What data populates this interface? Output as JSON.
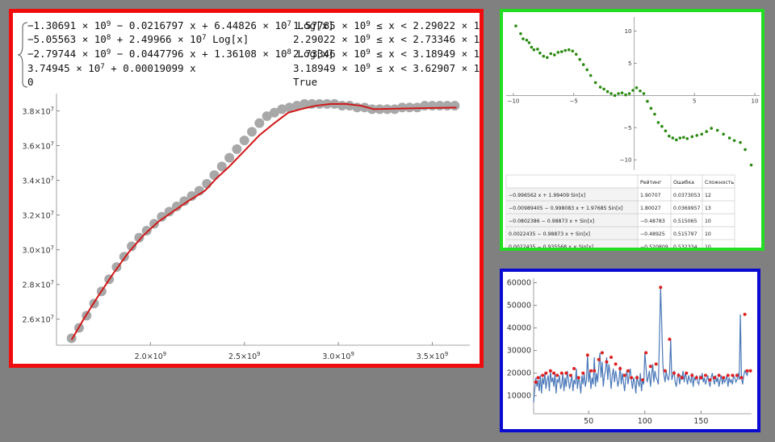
{
  "piecewise": {
    "rows": [
      {
        "expr": [
          "−1.30691 × 10",
          "9",
          " − 0.0216797 x + 6.44826 × 10",
          "7",
          " Log[x]"
        ],
        "cond": [
          "1.57785 × 10",
          "9",
          " ≤ x < 2.29022 × 10",
          "9"
        ]
      },
      {
        "expr": [
          "−5.05563 × 10",
          "8",
          " + 2.49966 × 10",
          "7",
          " Log[x]"
        ],
        "cond": [
          "2.29022 × 10",
          "9",
          " ≤ x < 2.73346 × 10",
          "9"
        ]
      },
      {
        "expr": [
          "−2.79744 × 10",
          "9",
          " − 0.0447796 x + 1.36108 × 10",
          "8",
          " Log[x]"
        ],
        "cond": [
          "2.73346 × 10",
          "9",
          " ≤ x < 3.18949 × 10",
          "9"
        ]
      },
      {
        "expr": [
          "3.74945 × 10",
          "7",
          " + 0.00019099 x"
        ],
        "cond": [
          "3.18949 × 10",
          "9",
          " ≤ x < 3.62907 × 10",
          "9"
        ]
      },
      {
        "expr": [
          "0"
        ],
        "cond": [
          "True"
        ]
      }
    ]
  },
  "table": {
    "headers": [
      "",
      "Рейтинг",
      "Ошибка",
      "Сложность"
    ],
    "rows": [
      [
        "−0.996562 x + 1.99409 Sin[x]",
        "1.90707",
        "0.0373053",
        "12"
      ],
      [
        "−0.00989405 − 0.998083 x + 1.97685 Sin[x]",
        "1.80027",
        "0.0369957",
        "13"
      ],
      [
        "−0.0802386 − 0.98873 x + Sin[x]",
        "−0.48783",
        "0.515065",
        "10"
      ],
      [
        "0.0022435 − 0.98873 x + Sin[x]",
        "−0.48925",
        "0.515797",
        "10"
      ],
      [
        "0.0022435 − 0.935568 x × Sin[x]",
        "−0.520809",
        "0.532334",
        "10"
      ]
    ]
  },
  "chart_data": [
    {
      "type": "scatter",
      "x_range": [
        1500000000.0,
        3700000000.0
      ],
      "y_range": [
        24500000.0,
        39000000.0
      ],
      "x_ticks": [
        2000000000.0,
        2500000000.0,
        3000000000.0,
        3500000000.0
      ],
      "x_tick_labels": [
        [
          "2.0×10",
          "9"
        ],
        [
          "2.5×10",
          "9"
        ],
        [
          "3.0×10",
          "9"
        ],
        [
          "3.5×10",
          "9"
        ]
      ],
      "y_ticks": [
        26000000.0,
        28000000.0,
        30000000.0,
        32000000.0,
        34000000.0,
        36000000.0,
        38000000.0
      ],
      "y_tick_labels": [
        [
          "2.6×10",
          "7"
        ],
        [
          "2.8×10",
          "7"
        ],
        [
          "3.0×10",
          "7"
        ],
        [
          "3.2×10",
          "7"
        ],
        [
          "3.4×10",
          "7"
        ],
        [
          "3.6×10",
          "7"
        ],
        [
          "3.8×10",
          "7"
        ]
      ],
      "series": [
        {
          "kind": "points",
          "color": "#a8a8a8",
          "x": [
            1580000000.0,
            1620000000.0,
            1660000000.0,
            1700000000.0,
            1740000000.0,
            1780000000.0,
            1820000000.0,
            1860000000.0,
            1900000000.0,
            1940000000.0,
            1980000000.0,
            2020000000.0,
            2060000000.0,
            2100000000.0,
            2140000000.0,
            2180000000.0,
            2220000000.0,
            2260000000.0,
            2300000000.0,
            2340000000.0,
            2380000000.0,
            2420000000.0,
            2460000000.0,
            2500000000.0,
            2540000000.0,
            2580000000.0,
            2620000000.0,
            2660000000.0,
            2700000000.0,
            2740000000.0,
            2780000000.0,
            2820000000.0,
            2860000000.0,
            2900000000.0,
            2940000000.0,
            2980000000.0,
            3020000000.0,
            3060000000.0,
            3100000000.0,
            3140000000.0,
            3180000000.0,
            3220000000.0,
            3260000000.0,
            3300000000.0,
            3340000000.0,
            3380000000.0,
            3420000000.0,
            3460000000.0,
            3500000000.0,
            3540000000.0,
            3580000000.0,
            3620000000.0
          ],
          "y": [
            24900000.0,
            25500000.0,
            26200000.0,
            26900000.0,
            27600000.0,
            28300000.0,
            29000000.0,
            29600000.0,
            30200000.0,
            30700000.0,
            31100000.0,
            31500000.0,
            31900000.0,
            32200000.0,
            32500000.0,
            32800000.0,
            33100000.0,
            33400000.0,
            33800000.0,
            34300000.0,
            34800000.0,
            35300000.0,
            35800000.0,
            36300000.0,
            36800000.0,
            37300000.0,
            37700000.0,
            37900000.0,
            38100000.0,
            38200000.0,
            38300000.0,
            38400000.0,
            38400000.0,
            38400000.0,
            38400000.0,
            38400000.0,
            38300000.0,
            38300000.0,
            38200000.0,
            38200000.0,
            38100000.0,
            38100000.0,
            38100000.0,
            38100000.0,
            38200000.0,
            38200000.0,
            38200000.0,
            38300000.0,
            38300000.0,
            38300000.0,
            38300000.0,
            38300000.0
          ]
        },
        {
          "kind": "line",
          "color": "#d01818",
          "x": [
            1580000000.0,
            1650000000.0,
            1720000000.0,
            1800000000.0,
            1880000000.0,
            1960000000.0,
            2040000000.0,
            2120000000.0,
            2200000000.0,
            2290000000.0,
            2350000000.0,
            2420000000.0,
            2500000000.0,
            2580000000.0,
            2660000000.0,
            2733400000.0,
            2800000000.0,
            2880000000.0,
            2960000000.0,
            3040000000.0,
            3120000000.0,
            3189500000.0,
            3300000000.0,
            3400000000.0,
            3500000000.0,
            3629000000.0
          ],
          "y": [
            24800000.0,
            26100000.0,
            27300000.0,
            28600000.0,
            29800000.0,
            30800000.0,
            31600000.0,
            32200000.0,
            32800000.0,
            33400000.0,
            34100000.0,
            34800000.0,
            35700000.0,
            36600000.0,
            37300000.0,
            37900000.0,
            38100000.0,
            38300000.0,
            38400000.0,
            38400000.0,
            38300000.0,
            38100000.0,
            38130000.0,
            38150000.0,
            38170000.0,
            38190000.0
          ]
        }
      ]
    },
    {
      "type": "scatter",
      "x_range": [
        -10.6,
        10.4
      ],
      "y_range": [
        -11.6,
        12.2
      ],
      "x_ticks": [
        -10,
        -5,
        5,
        10
      ],
      "x_tick_labels": [
        "−10",
        "−5",
        "5",
        "10"
      ],
      "y_ticks": [
        10,
        5,
        -5,
        -10
      ],
      "y_tick_labels": [
        "10",
        "5",
        "−5",
        "−10"
      ],
      "series": [
        {
          "kind": "points",
          "color": "#2a8a10",
          "x": [
            -9.8,
            -9.4,
            -9.2,
            -8.9,
            -8.7,
            -8.5,
            -8.3,
            -8.0,
            -7.8,
            -7.5,
            -7.2,
            -6.9,
            -6.6,
            -6.3,
            -6.0,
            -5.7,
            -5.4,
            -5.1,
            -4.8,
            -4.5,
            -4.2,
            -3.9,
            -3.6,
            -3.2,
            -2.8,
            -2.5,
            -2.2,
            -1.9,
            -1.6,
            -1.3,
            -1.0,
            -0.7,
            -0.4,
            -0.1,
            0.2,
            0.5,
            0.8,
            1.1,
            1.4,
            1.7,
            2.0,
            2.3,
            2.6,
            2.9,
            3.2,
            3.5,
            3.8,
            4.1,
            4.4,
            4.8,
            5.2,
            5.6,
            6.0,
            6.4,
            6.9,
            7.4,
            7.9,
            8.3,
            8.8,
            9.2,
            9.7
          ],
          "y": [
            10.8,
            9.6,
            8.8,
            8.6,
            8.2,
            7.5,
            7.1,
            7.2,
            6.6,
            6.1,
            5.9,
            6.5,
            6.3,
            6.7,
            6.8,
            7.0,
            7.1,
            6.9,
            6.4,
            5.6,
            4.8,
            4.0,
            3.1,
            2.0,
            1.3,
            1.0,
            0.6,
            0.3,
            0.0,
            0.3,
            0.4,
            0.1,
            0.3,
            0.8,
            1.2,
            0.7,
            0.3,
            -0.9,
            -2.0,
            -2.9,
            -4.2,
            -4.8,
            -5.5,
            -6.3,
            -6.6,
            -6.9,
            -6.6,
            -6.5,
            -6.7,
            -6.4,
            -6.2,
            -6.0,
            -5.6,
            -5.1,
            -5.4,
            -6.0,
            -6.6,
            -7.0,
            -7.3,
            -8.4,
            -10.8
          ]
        }
      ]
    },
    {
      "type": "line",
      "x_range": [
        1,
        195
      ],
      "y_range": [
        2000,
        62000
      ],
      "x_ticks": [
        50,
        100,
        150
      ],
      "x_tick_labels": [
        "50",
        "100",
        "150"
      ],
      "y_ticks": [
        10000,
        20000,
        30000,
        40000,
        50000,
        60000
      ],
      "y_tick_labels": [
        "10000",
        "20000",
        "30000",
        "40000",
        "50000",
        "60000"
      ],
      "series": [
        {
          "kind": "line",
          "color": "#4a78b8",
          "values": [
            7000,
            13000,
            18000,
            14000,
            17000,
            12000,
            19000,
            11000,
            18000,
            15000,
            20000,
            13000,
            17000,
            19000,
            12000,
            21000,
            16000,
            18000,
            14000,
            20000,
            11000,
            17000,
            16000,
            19000,
            13000,
            15000,
            20000,
            12000,
            18000,
            14000,
            21000,
            17000,
            13000,
            16000,
            19000,
            12000,
            17000,
            15000,
            22000,
            13000,
            18000,
            16000,
            11000,
            19000,
            15000,
            20000,
            14000,
            17000,
            28000,
            16000,
            21000,
            13000,
            18000,
            15000,
            27000,
            14000,
            20000,
            16000,
            23000,
            29000,
            18000,
            25000,
            14000,
            19000,
            21000,
            27000,
            17000,
            24000,
            20000,
            13000,
            19000,
            22000,
            16000,
            21000,
            18000,
            14000,
            17000,
            23000,
            15000,
            20000,
            16000,
            12000,
            18000,
            21000,
            15000,
            19000,
            22000,
            17000,
            13000,
            18000,
            16000,
            11000,
            19000,
            16000,
            14000,
            20000,
            12000,
            17000,
            15000,
            29000,
            23000,
            16000,
            18000,
            21000,
            14000,
            19000,
            24000,
            16000,
            21000,
            18000,
            17000,
            15000,
            35000,
            58000,
            42000,
            24000,
            19000,
            16000,
            21000,
            18000,
            17000,
            20000,
            35000,
            17000,
            19000,
            21000,
            16000,
            14000,
            18000,
            20000,
            15000,
            19000,
            17000,
            21000,
            16000,
            20000,
            18000,
            15000,
            19000,
            17000,
            16000,
            20000,
            14000,
            18000,
            17000,
            19000,
            16000,
            15000,
            19000,
            17000,
            20000,
            16000,
            18000,
            15000,
            17000,
            19000,
            16000,
            14000,
            18000,
            20000,
            17000,
            15000,
            19000,
            16000,
            18000,
            14000,
            17000,
            19000,
            15000,
            18000,
            16000,
            17000,
            19000,
            14000,
            18000,
            16000,
            17000,
            15000,
            19000,
            18000,
            16000,
            17000,
            20000,
            17000,
            46000,
            18000,
            15000,
            19000,
            21000,
            20000,
            19000,
            21000
          ]
        },
        {
          "kind": "points",
          "color": "#e02020",
          "x": [
            3,
            5,
            9,
            12,
            16,
            19,
            22,
            26,
            30,
            34,
            37,
            41,
            45,
            49,
            52,
            55,
            59,
            62,
            66,
            70,
            74,
            78,
            82,
            85,
            88,
            93,
            98,
            101,
            105,
            110,
            114,
            118,
            122,
            126,
            130,
            133,
            137,
            142,
            146,
            150,
            154,
            158,
            162,
            166,
            170,
            174,
            178,
            182,
            186,
            189,
            191,
            194
          ],
          "y": [
            16000,
            18000,
            19000,
            20000,
            21000,
            20000,
            19000,
            20000,
            20000,
            19000,
            22000,
            18000,
            20000,
            28000,
            21000,
            21000,
            26000,
            29000,
            25000,
            27000,
            24000,
            22000,
            19000,
            21000,
            18000,
            18000,
            17000,
            29000,
            23000,
            24000,
            58000,
            21000,
            35000,
            20000,
            19000,
            18000,
            20000,
            19000,
            18000,
            18000,
            19000,
            17000,
            18000,
            19000,
            18000,
            19000,
            19000,
            19000,
            18000,
            46000,
            21000,
            21000
          ]
        }
      ]
    }
  ]
}
